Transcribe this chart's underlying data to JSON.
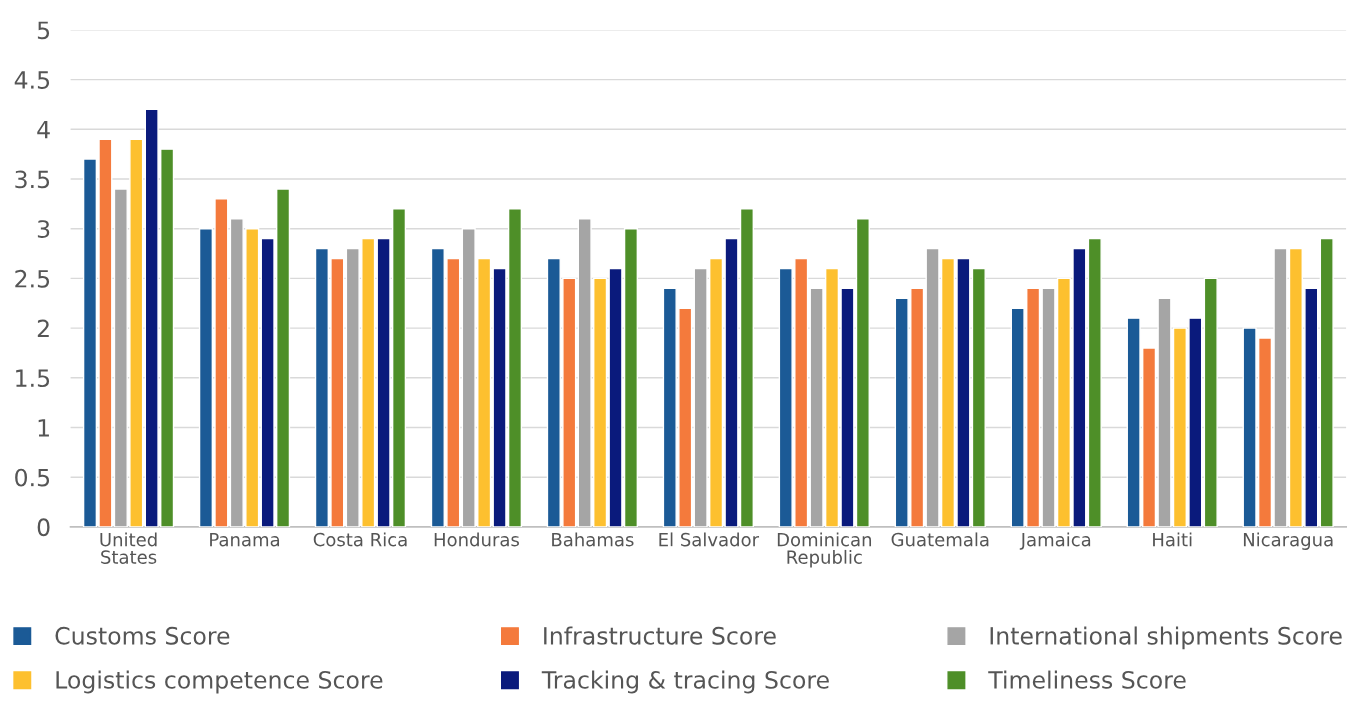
{
  "chart_data": {
    "type": "bar",
    "categories": [
      "United\nStates",
      "Panama",
      "Costa Rica",
      "Honduras",
      "Bahamas",
      "El Salvador",
      "Dominican\nRepublic",
      "Guatemala",
      "Jamaica",
      "Haiti",
      "Nicaragua"
    ],
    "series": [
      {
        "name": "Customs Score",
        "color": "#1b5a96",
        "values": [
          3.7,
          3.0,
          2.8,
          2.8,
          2.7,
          2.4,
          2.6,
          2.3,
          2.2,
          2.1,
          2.0
        ]
      },
      {
        "name": "Infrastructure Score",
        "color": "#f47a3c",
        "values": [
          3.9,
          3.3,
          2.7,
          2.7,
          2.5,
          2.2,
          2.7,
          2.4,
          2.4,
          1.8,
          1.9
        ]
      },
      {
        "name": "International shipments Score",
        "color": "#a5a5a5",
        "values": [
          3.4,
          3.1,
          2.8,
          3.0,
          3.1,
          2.6,
          2.4,
          2.8,
          2.4,
          2.3,
          2.8
        ]
      },
      {
        "name": "Logistics competence Score",
        "color": "#fdc02f",
        "values": [
          3.9,
          3.0,
          2.9,
          2.7,
          2.5,
          2.7,
          2.6,
          2.7,
          2.5,
          2.0,
          2.8
        ]
      },
      {
        "name": "Tracking & tracing Score",
        "color": "#0a1a7c",
        "values": [
          4.2,
          2.9,
          2.9,
          2.6,
          2.6,
          2.9,
          2.4,
          2.7,
          2.8,
          2.1,
          2.4
        ]
      },
      {
        "name": "Timeliness Score",
        "color": "#4e8f28",
        "values": [
          3.8,
          3.4,
          3.2,
          3.2,
          3.0,
          3.2,
          3.1,
          2.6,
          2.9,
          2.5,
          2.9
        ]
      }
    ],
    "ylim": [
      0,
      5
    ],
    "yticks": [
      0,
      0.5,
      1,
      1.5,
      2,
      2.5,
      3,
      3.5,
      4,
      4.5,
      5
    ],
    "grid": "y",
    "legend": "bottom"
  }
}
